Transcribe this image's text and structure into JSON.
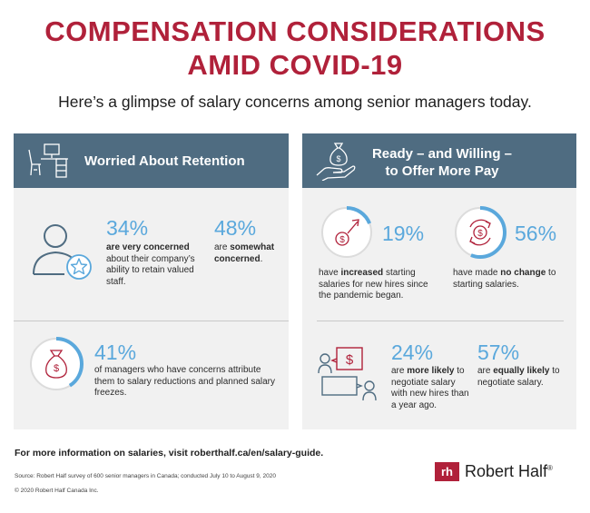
{
  "header": {
    "title_line1": "COMPENSATION CONSIDERATIONS",
    "title_line2": "AMID COVID-19",
    "subtitle": "Here’s a glimpse of salary concerns among senior managers today."
  },
  "left_panel": {
    "heading": "Worried About Retention",
    "stat1": {
      "pct": "34%",
      "strong": "are very concerned",
      "rest": "about their company’s ability to retain valued staff."
    },
    "stat2": {
      "pct": "48%",
      "lead": "are ",
      "strong": "somewhat concerned",
      "rest": "."
    },
    "stat3": {
      "pct": "41%",
      "text": "of managers who have concerns attribute them to salary reductions and planned salary freezes.",
      "ring_fraction": 0.41
    }
  },
  "right_panel": {
    "heading_line1": "Ready – and Willing –",
    "heading_line2": "to Offer More Pay",
    "stat1": {
      "pct": "19%",
      "lead": "have ",
      "strong": "increased",
      "rest": " starting salaries for new hires since the pandemic began.",
      "ring_fraction": 0.19
    },
    "stat2": {
      "pct": "56%",
      "lead": "have made ",
      "strong": "no change",
      "rest": " to starting salaries.",
      "ring_fraction": 0.56
    },
    "stat3": {
      "pct": "24%",
      "lead": "are ",
      "strong": "more likely",
      "rest": " to negotiate salary with new hires than a year ago."
    },
    "stat4": {
      "pct": "57%",
      "lead": "are ",
      "strong": "equally likely",
      "rest": " to negotiate salary."
    }
  },
  "footer": {
    "more_info": "For more information on salaries, visit roberthalf.ca/en/salary-guide.",
    "source": "Source: Robert Half survey of 600 senior managers in Canada; conducted July 10 to August 9, 2020",
    "copyright": "© 2020 Robert Half Canada Inc.",
    "brand_mark": "rh",
    "brand": "Robert Half",
    "brand_reg": "®"
  },
  "colors": {
    "red": "#b0213a",
    "blue": "#5aa8dc",
    "header": "#4f6c81",
    "panel": "#f1f1f1"
  }
}
